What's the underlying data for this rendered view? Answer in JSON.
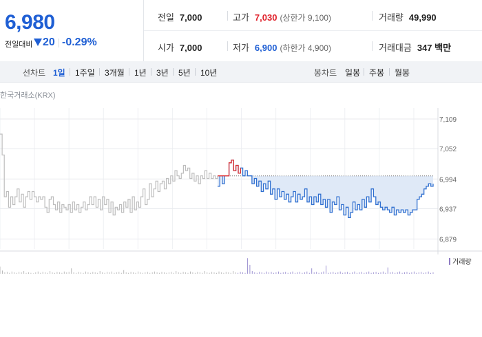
{
  "quote": {
    "price": "6,980",
    "change_label": "전일대비",
    "change_abs": "20",
    "change_pct": "-0.29%",
    "prev_close": {
      "label": "전일",
      "value": "7,000"
    },
    "high": {
      "label": "고가",
      "value": "7,030",
      "limit": "(상한가 9,100)"
    },
    "volume": {
      "label": "거래량",
      "value": "49,990"
    },
    "open": {
      "label": "시가",
      "value": "7,000"
    },
    "low": {
      "label": "저가",
      "value": "6,900",
      "limit": "(하한가 4,900)"
    },
    "amount": {
      "label": "거래대금",
      "value": "347 백만"
    }
  },
  "toolbar": {
    "line_label": "선차트",
    "line_periods": [
      "1일",
      "1주일",
      "3개월",
      "1년",
      "3년",
      "5년",
      "10년"
    ],
    "active_period": "1일",
    "candle_label": "봉차트",
    "candle_periods": [
      "일봉",
      "주봉",
      "월봉"
    ]
  },
  "chart": {
    "source": "한국거래소(KRX)",
    "volume_legend": "거래량",
    "colors": {
      "today_line": "#2f6fd0",
      "above_prev": "#e03030",
      "prev_day_line": "#bdbdbd",
      "fill": "#dfe9f7",
      "prev_close_line": "#707070",
      "volume_bar": "#9a8fd0"
    }
  },
  "chart_data": {
    "type": "line",
    "title": "",
    "xlabel": "",
    "ylabel": "",
    "y_ticks": [
      "7,109",
      "7,052",
      "6,994",
      "6,937",
      "6,879"
    ],
    "y_tick_values": [
      7109,
      7052,
      6994,
      6937,
      6879
    ],
    "ylim": [
      6860,
      7130
    ],
    "prev_close": 7000,
    "grid": true,
    "series": [
      {
        "values": [
          7080,
          7040,
          6960,
          6970,
          6940,
          6960,
          6945,
          6960,
          6975,
          6950,
          6965,
          6940,
          6960,
          6970,
          6955,
          6970,
          6960,
          6950,
          6960,
          6955,
          6960,
          6940,
          6930,
          6955,
          6960,
          6945,
          6935,
          6950,
          6930,
          6945,
          6940,
          6935,
          6945,
          6930,
          6950,
          6935,
          6945,
          6930,
          6940,
          6950,
          6935,
          6945,
          6960,
          6945,
          6960,
          6940,
          6955,
          6935,
          6960,
          6945,
          6955,
          6930,
          6950,
          6925,
          6940,
          6935,
          6945,
          6930,
          6950,
          6940,
          6955,
          6930,
          6960,
          6935,
          6950,
          6940,
          6960,
          6975,
          6945,
          6955,
          6985,
          6960,
          6975,
          6990,
          6970,
          6985,
          6990,
          6975,
          6995,
          6985,
          7000,
          6990,
          7010,
          7000,
          6995,
          7005,
          7020,
          7010,
          7015,
          6995,
          7005,
          6990,
          7000,
          6985,
          7000,
          6995,
          7010,
          6995,
          7005,
          6995,
          7000,
          6995,
          7000
        ]
      },
      {
        "values": [
          6980,
          7000,
          6985,
          7000,
          7000,
          7025,
          7030,
          7010,
          7020,
          7005,
          7015,
          7000,
          7010,
          7000,
          7000,
          6985,
          6995,
          6980,
          6990,
          6970,
          6985,
          6975,
          6990,
          6965,
          6975,
          6955,
          6975,
          6960,
          6970,
          6955,
          6965,
          6950,
          6960,
          6970,
          6950,
          6965,
          6955,
          6960,
          6975,
          6950,
          6960,
          6945,
          6960,
          6950,
          6965,
          6945,
          6955,
          6940,
          6955,
          6930,
          6950,
          6945,
          6960,
          6935,
          6945,
          6925,
          6940,
          6920,
          6930,
          6950,
          6935,
          6945,
          6935,
          6955,
          6940,
          6960,
          6950,
          6975,
          6960,
          6945,
          6950,
          6940,
          6935,
          6940,
          6935,
          6930,
          6940,
          6925,
          6935,
          6930,
          6935,
          6930,
          6935,
          6925,
          6930,
          6935,
          6935,
          6955,
          6960,
          6965,
          6975,
          6980,
          6985,
          6980,
          6985
        ]
      }
    ],
    "volume": [
      16,
      7,
      3,
      4,
      2,
      5,
      3,
      2,
      4,
      3,
      6,
      2,
      3,
      2,
      1,
      3,
      5,
      2,
      4,
      3,
      2,
      6,
      3,
      2,
      4,
      3,
      2,
      5,
      3,
      4,
      12,
      3,
      2,
      4,
      3,
      2,
      5,
      3,
      2,
      4,
      3,
      2,
      6,
      3,
      2,
      4,
      3,
      5,
      2,
      3,
      4,
      2,
      8,
      3,
      2,
      4,
      3,
      2,
      5,
      3,
      2,
      3,
      4,
      2,
      3,
      5,
      3,
      2,
      4,
      3,
      2,
      3,
      4,
      2,
      6,
      3,
      2,
      4,
      3,
      2,
      5,
      3,
      2,
      4,
      3,
      2,
      6,
      3,
      2,
      4,
      3,
      2,
      5,
      3,
      2,
      4,
      3,
      2,
      6,
      3,
      2,
      4,
      3,
      2,
      35,
      20,
      6,
      3,
      2,
      4,
      3,
      2,
      5,
      3,
      4,
      2,
      3,
      5,
      2,
      3,
      4,
      2,
      3,
      5,
      2,
      3,
      4,
      2,
      3,
      5,
      2,
      12,
      3,
      4,
      2,
      3,
      5,
      18,
      2,
      3,
      4,
      2,
      3,
      5,
      2,
      3,
      4,
      2,
      3,
      5,
      2,
      3,
      4,
      2,
      3,
      5,
      2,
      3,
      4,
      2,
      3,
      5,
      2,
      14,
      3,
      4,
      2,
      3,
      5,
      2,
      3,
      4,
      2,
      3,
      5,
      2,
      3,
      4,
      2,
      3,
      5,
      2,
      3
    ]
  }
}
